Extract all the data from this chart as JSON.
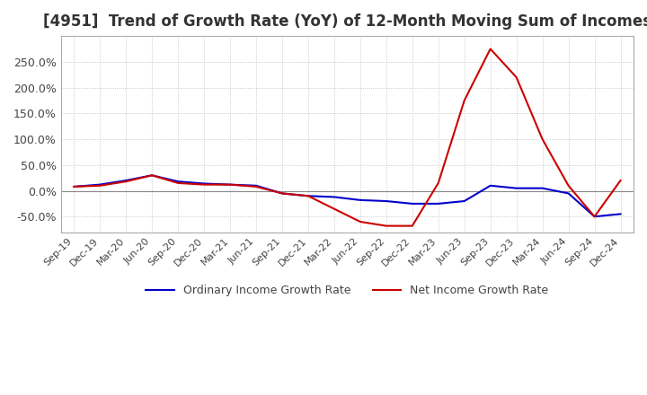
{
  "title": "[4951]  Trend of Growth Rate (YoY) of 12-Month Moving Sum of Incomes",
  "title_fontsize": 12,
  "ylim": [
    -80,
    300
  ],
  "yticks": [
    -50,
    0,
    50,
    100,
    150,
    200,
    250
  ],
  "ytick_labels": [
    "-50.0%",
    "0.0%",
    "50.0%",
    "100.0%",
    "150.0%",
    "200.0%",
    "250.0%"
  ],
  "legend_labels": [
    "Ordinary Income Growth Rate",
    "Net Income Growth Rate"
  ],
  "legend_colors": [
    "#0000cc",
    "#cc0000"
  ],
  "background_color": "#ffffff",
  "grid_color": "#bbbbbb",
  "x_labels": [
    "Sep-19",
    "Dec-19",
    "Mar-20",
    "Jun-20",
    "Sep-20",
    "Dec-20",
    "Mar-21",
    "Jun-21",
    "Sep-21",
    "Dec-21",
    "Mar-22",
    "Jun-22",
    "Sep-22",
    "Dec-22",
    "Mar-23",
    "Jun-23",
    "Sep-23",
    "Dec-23",
    "Mar-24",
    "Jun-24",
    "Sep-24",
    "Dec-24"
  ],
  "ordinary_income": [
    8,
    12,
    20,
    30,
    18,
    14,
    12,
    10,
    -5,
    -10,
    -12,
    -18,
    -20,
    -25,
    -25,
    -20,
    10,
    5,
    5,
    -5,
    -50,
    -45
  ],
  "net_income": [
    8,
    10,
    18,
    30,
    15,
    12,
    12,
    8,
    -5,
    -10,
    -35,
    -60,
    -68,
    -68,
    15,
    175,
    275,
    220,
    100,
    10,
    -50,
    20
  ]
}
